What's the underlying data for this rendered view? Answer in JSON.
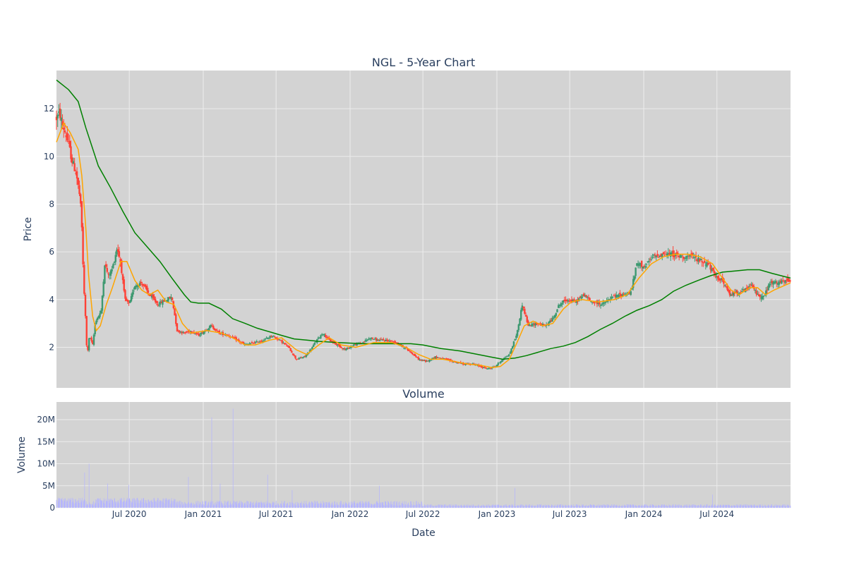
{
  "chart_data": [
    {
      "type": "candlestick",
      "title": "NGL - 5-Year Chart",
      "xlabel": "",
      "ylabel": "Price",
      "x_range": [
        "2020-01-02",
        "2024-12-31"
      ],
      "ylim": [
        0.3,
        13.6
      ],
      "y_ticks": [
        2,
        4,
        6,
        8,
        10,
        12
      ],
      "grid": true,
      "colors": {
        "up": "#3d9970",
        "down": "#ff4136",
        "ma_short": "#ffa500",
        "ma_long": "#008000",
        "plot_bg": "#d3d3d3"
      },
      "close_path_points": [
        [
          "2020-01-02",
          11.6
        ],
        [
          "2020-01-10",
          11.8
        ],
        [
          "2020-01-17",
          11.3
        ],
        [
          "2020-01-24",
          11.0
        ],
        [
          "2020-02-01",
          10.5
        ],
        [
          "2020-02-10",
          9.8
        ],
        [
          "2020-02-20",
          9.3
        ],
        [
          "2020-03-01",
          8.2
        ],
        [
          "2020-03-05",
          7.0
        ],
        [
          "2020-03-10",
          4.5
        ],
        [
          "2020-03-15",
          3.0
        ],
        [
          "2020-03-18",
          1.6
        ],
        [
          "2020-03-24",
          2.5
        ],
        [
          "2020-04-01",
          2.1
        ],
        [
          "2020-04-08",
          3.1
        ],
        [
          "2020-04-15",
          3.3
        ],
        [
          "2020-04-22",
          3.5
        ],
        [
          "2020-05-01",
          5.5
        ],
        [
          "2020-05-10",
          5.0
        ],
        [
          "2020-05-20",
          5.3
        ],
        [
          "2020-06-01",
          6.2
        ],
        [
          "2020-06-10",
          5.5
        ],
        [
          "2020-06-20",
          4.0
        ],
        [
          "2020-07-01",
          3.8
        ],
        [
          "2020-07-15",
          4.6
        ],
        [
          "2020-08-01",
          4.7
        ],
        [
          "2020-08-20",
          4.2
        ],
        [
          "2020-09-10",
          3.8
        ],
        [
          "2020-10-01",
          4.0
        ],
        [
          "2020-10-15",
          4.1
        ],
        [
          "2020-10-28",
          2.7
        ],
        [
          "2020-11-15",
          2.6
        ],
        [
          "2020-12-01",
          2.7
        ],
        [
          "2020-12-20",
          2.5
        ],
        [
          "2021-01-05",
          2.7
        ],
        [
          "2021-01-20",
          2.9
        ],
        [
          "2021-02-10",
          2.6
        ],
        [
          "2021-03-05",
          2.5
        ],
        [
          "2021-03-25",
          2.3
        ],
        [
          "2021-04-15",
          2.1
        ],
        [
          "2021-05-10",
          2.2
        ],
        [
          "2021-06-01",
          2.3
        ],
        [
          "2021-06-20",
          2.5
        ],
        [
          "2021-07-10",
          2.3
        ],
        [
          "2021-08-01",
          2.0
        ],
        [
          "2021-08-20",
          1.5
        ],
        [
          "2021-09-10",
          1.6
        ],
        [
          "2021-09-25",
          1.9
        ],
        [
          "2021-10-10",
          2.3
        ],
        [
          "2021-10-25",
          2.6
        ],
        [
          "2021-11-10",
          2.3
        ],
        [
          "2021-12-01",
          2.1
        ],
        [
          "2021-12-20",
          1.9
        ],
        [
          "2022-01-10",
          2.1
        ],
        [
          "2022-02-01",
          2.2
        ],
        [
          "2022-02-20",
          2.4
        ],
        [
          "2022-03-10",
          2.3
        ],
        [
          "2022-04-01",
          2.3
        ],
        [
          "2022-04-25",
          2.2
        ],
        [
          "2022-05-15",
          2.0
        ],
        [
          "2022-06-01",
          1.8
        ],
        [
          "2022-06-20",
          1.5
        ],
        [
          "2022-07-10",
          1.4
        ],
        [
          "2022-08-01",
          1.6
        ],
        [
          "2022-08-25",
          1.5
        ],
        [
          "2022-09-15",
          1.4
        ],
        [
          "2022-10-10",
          1.3
        ],
        [
          "2022-11-01",
          1.3
        ],
        [
          "2022-11-20",
          1.2
        ],
        [
          "2022-12-10",
          1.1
        ],
        [
          "2022-12-28",
          1.2
        ],
        [
          "2023-01-15",
          1.5
        ],
        [
          "2023-02-01",
          1.7
        ],
        [
          "2023-02-20",
          2.6
        ],
        [
          "2023-03-05",
          3.8
        ],
        [
          "2023-03-20",
          2.9
        ],
        [
          "2023-04-10",
          3.0
        ],
        [
          "2023-05-01",
          2.9
        ],
        [
          "2023-05-20",
          3.2
        ],
        [
          "2023-06-05",
          3.8
        ],
        [
          "2023-06-25",
          4.0
        ],
        [
          "2023-07-15",
          3.9
        ],
        [
          "2023-08-05",
          4.2
        ],
        [
          "2023-08-25",
          3.9
        ],
        [
          "2023-09-20",
          3.8
        ],
        [
          "2023-10-15",
          4.1
        ],
        [
          "2023-11-05",
          4.2
        ],
        [
          "2023-11-30",
          4.3
        ],
        [
          "2023-12-15",
          5.5
        ],
        [
          "2024-01-05",
          5.4
        ],
        [
          "2024-01-25",
          5.8
        ],
        [
          "2024-02-15",
          5.9
        ],
        [
          "2024-03-10",
          5.9
        ],
        [
          "2024-04-05",
          5.8
        ],
        [
          "2024-04-30",
          5.8
        ],
        [
          "2024-05-25",
          5.6
        ],
        [
          "2024-06-10",
          5.5
        ],
        [
          "2024-06-25",
          5.0
        ],
        [
          "2024-07-15",
          4.8
        ],
        [
          "2024-08-01",
          4.2
        ],
        [
          "2024-08-20",
          4.3
        ],
        [
          "2024-09-10",
          4.4
        ],
        [
          "2024-09-25",
          4.6
        ],
        [
          "2024-10-10",
          4.2
        ],
        [
          "2024-10-25",
          4.1
        ],
        [
          "2024-11-10",
          4.7
        ],
        [
          "2024-11-30",
          4.7
        ],
        [
          "2024-12-31",
          4.8
        ]
      ],
      "ma_short_points": [
        [
          "2020-01-02",
          10.6
        ],
        [
          "2020-01-20",
          11.4
        ],
        [
          "2020-02-05",
          11.0
        ],
        [
          "2020-02-25",
          10.3
        ],
        [
          "2020-03-05",
          9.2
        ],
        [
          "2020-03-15",
          7.0
        ],
        [
          "2020-03-22",
          5.0
        ],
        [
          "2020-04-01",
          3.3
        ],
        [
          "2020-04-10",
          2.7
        ],
        [
          "2020-04-20",
          2.9
        ],
        [
          "2020-05-05",
          3.8
        ],
        [
          "2020-05-20",
          4.5
        ],
        [
          "2020-06-10",
          5.6
        ],
        [
          "2020-06-25",
          5.6
        ],
        [
          "2020-07-15",
          4.8
        ],
        [
          "2020-08-01",
          4.4
        ],
        [
          "2020-08-20",
          4.2
        ],
        [
          "2020-09-10",
          4.4
        ],
        [
          "2020-10-01",
          3.9
        ],
        [
          "2020-10-20",
          3.8
        ],
        [
          "2020-11-10",
          3.0
        ],
        [
          "2020-12-01",
          2.6
        ],
        [
          "2021-01-10",
          2.7
        ],
        [
          "2021-02-15",
          2.6
        ],
        [
          "2021-03-15",
          2.4
        ],
        [
          "2021-04-15",
          2.1
        ],
        [
          "2021-05-10",
          2.1
        ],
        [
          "2021-06-15",
          2.3
        ],
        [
          "2021-07-15",
          2.4
        ],
        [
          "2021-08-20",
          1.9
        ],
        [
          "2021-09-15",
          1.7
        ],
        [
          "2021-10-15",
          2.1
        ],
        [
          "2021-11-10",
          2.4
        ],
        [
          "2021-12-10",
          2.1
        ],
        [
          "2022-01-15",
          2.0
        ],
        [
          "2022-03-01",
          2.2
        ],
        [
          "2022-04-15",
          2.2
        ],
        [
          "2022-05-20",
          2.0
        ],
        [
          "2022-06-20",
          1.7
        ],
        [
          "2022-07-20",
          1.5
        ],
        [
          "2022-08-20",
          1.5
        ],
        [
          "2022-09-20",
          1.4
        ],
        [
          "2022-10-20",
          1.3
        ],
        [
          "2022-11-20",
          1.25
        ],
        [
          "2022-12-20",
          1.15
        ],
        [
          "2023-01-10",
          1.2
        ],
        [
          "2023-02-01",
          1.5
        ],
        [
          "2023-02-20",
          2.2
        ],
        [
          "2023-03-10",
          2.9
        ],
        [
          "2023-04-01",
          3.1
        ],
        [
          "2023-04-25",
          2.9
        ],
        [
          "2023-05-20",
          3.0
        ],
        [
          "2023-06-15",
          3.6
        ],
        [
          "2023-07-05",
          3.9
        ],
        [
          "2023-08-01",
          4.0
        ],
        [
          "2023-09-10",
          3.9
        ],
        [
          "2023-10-20",
          4.0
        ],
        [
          "2023-11-20",
          4.2
        ],
        [
          "2023-12-20",
          4.9
        ],
        [
          "2024-01-20",
          5.5
        ],
        [
          "2024-02-20",
          5.8
        ],
        [
          "2024-03-20",
          5.9
        ],
        [
          "2024-04-20",
          5.9
        ],
        [
          "2024-05-20",
          5.8
        ],
        [
          "2024-06-20",
          5.5
        ],
        [
          "2024-07-15",
          4.9
        ],
        [
          "2024-08-05",
          4.4
        ],
        [
          "2024-08-25",
          4.2
        ],
        [
          "2024-09-20",
          4.5
        ],
        [
          "2024-10-10",
          4.5
        ],
        [
          "2024-10-30",
          4.2
        ],
        [
          "2024-11-20",
          4.4
        ],
        [
          "2024-12-31",
          4.7
        ]
      ],
      "ma_long_points": [
        [
          "2020-01-02",
          13.2
        ],
        [
          "2020-02-01",
          12.8
        ],
        [
          "2020-02-25",
          12.3
        ],
        [
          "2020-03-15",
          11.2
        ],
        [
          "2020-04-15",
          9.6
        ],
        [
          "2020-05-15",
          8.7
        ],
        [
          "2020-06-15",
          7.7
        ],
        [
          "2020-07-15",
          6.8
        ],
        [
          "2020-08-15",
          6.2
        ],
        [
          "2020-09-15",
          5.6
        ],
        [
          "2020-10-15",
          4.9
        ],
        [
          "2020-11-15",
          4.2
        ],
        [
          "2020-12-01",
          3.9
        ],
        [
          "2020-12-20",
          3.85
        ],
        [
          "2021-01-15",
          3.85
        ],
        [
          "2021-02-15",
          3.6
        ],
        [
          "2021-03-15",
          3.2
        ],
        [
          "2021-04-15",
          3.0
        ],
        [
          "2021-05-15",
          2.8
        ],
        [
          "2021-06-15",
          2.65
        ],
        [
          "2021-07-15",
          2.5
        ],
        [
          "2021-08-15",
          2.35
        ],
        [
          "2021-09-15",
          2.3
        ],
        [
          "2021-10-15",
          2.25
        ],
        [
          "2021-12-01",
          2.2
        ],
        [
          "2022-02-01",
          2.15
        ],
        [
          "2022-04-01",
          2.15
        ],
        [
          "2022-06-01",
          2.15
        ],
        [
          "2022-07-01",
          2.1
        ],
        [
          "2022-08-15",
          1.95
        ],
        [
          "2022-10-01",
          1.85
        ],
        [
          "2022-11-15",
          1.7
        ],
        [
          "2022-12-15",
          1.6
        ],
        [
          "2023-01-15",
          1.5
        ],
        [
          "2023-02-15",
          1.55
        ],
        [
          "2023-03-15",
          1.65
        ],
        [
          "2023-04-15",
          1.8
        ],
        [
          "2023-05-15",
          1.95
        ],
        [
          "2023-06-15",
          2.05
        ],
        [
          "2023-07-15",
          2.2
        ],
        [
          "2023-08-15",
          2.45
        ],
        [
          "2023-09-15",
          2.75
        ],
        [
          "2023-10-15",
          3.0
        ],
        [
          "2023-11-15",
          3.3
        ],
        [
          "2023-12-15",
          3.55
        ],
        [
          "2024-01-15",
          3.75
        ],
        [
          "2024-02-15",
          4.0
        ],
        [
          "2024-03-15",
          4.35
        ],
        [
          "2024-04-15",
          4.6
        ],
        [
          "2024-05-15",
          4.8
        ],
        [
          "2024-06-15",
          5.0
        ],
        [
          "2024-07-15",
          5.15
        ],
        [
          "2024-08-15",
          5.2
        ],
        [
          "2024-09-15",
          5.25
        ],
        [
          "2024-10-15",
          5.25
        ],
        [
          "2024-11-15",
          5.1
        ],
        [
          "2024-12-31",
          4.9
        ]
      ]
    },
    {
      "type": "bar",
      "title": "Volume",
      "xlabel": "Date",
      "ylabel": "Volume",
      "ylim": [
        0,
        24000000
      ],
      "y_ticks": [
        0,
        5000000,
        10000000,
        15000000,
        20000000
      ],
      "y_tick_labels": [
        "0",
        "5M",
        "10M",
        "15M",
        "20M"
      ],
      "x_ticks": [
        "2020-07-01",
        "2021-01-01",
        "2021-07-01",
        "2022-01-01",
        "2022-07-01",
        "2023-01-01",
        "2023-07-01",
        "2024-01-01",
        "2024-07-01"
      ],
      "x_tick_labels": [
        "Jul 2020",
        "Jan 2021",
        "Jul 2021",
        "Jan 2022",
        "Jul 2022",
        "Jan 2023",
        "Jul 2023",
        "Jan 2024",
        "Jul 2024"
      ],
      "grid": true,
      "colors": {
        "bar": "#b4b4ff",
        "plot_bg": "#d3d3d3"
      },
      "spikes": [
        [
          "2020-03-12",
          8000000
        ],
        [
          "2020-03-23",
          10000000
        ],
        [
          "2020-05-08",
          5500000
        ],
        [
          "2020-06-30",
          5200000
        ],
        [
          "2020-11-25",
          7000000
        ],
        [
          "2021-01-22",
          20500000
        ],
        [
          "2021-02-12",
          5500000
        ],
        [
          "2021-03-16",
          22500000
        ],
        [
          "2021-06-10",
          7500000
        ],
        [
          "2021-08-10",
          4000000
        ],
        [
          "2021-11-20",
          3500000
        ],
        [
          "2022-03-15",
          5000000
        ],
        [
          "2023-02-15",
          4500000
        ],
        [
          "2024-06-20",
          3000000
        ]
      ]
    }
  ]
}
